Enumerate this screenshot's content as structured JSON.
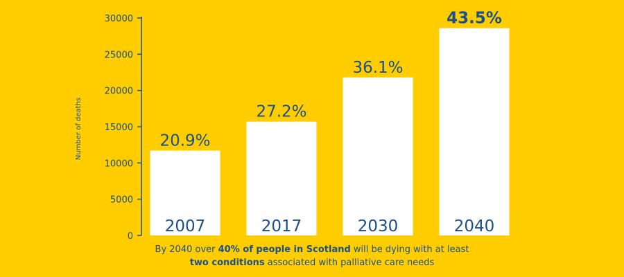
{
  "chart_data": {
    "type": "bar",
    "categories": [
      "2007",
      "2017",
      "2030",
      "2040"
    ],
    "values": [
      11700,
      15700,
      21800,
      28600
    ],
    "data_labels": [
      "20.9%",
      "27.2%",
      "36.1%",
      "43.5%"
    ],
    "ylabel": "Number of deaths",
    "ylim": [
      0,
      30000
    ],
    "yticks": [
      0,
      5000,
      10000,
      15000,
      20000,
      25000,
      30000
    ],
    "grid": false,
    "legend": "none"
  },
  "caption": {
    "line1_pre": "By 2040 over ",
    "line1_bold": "40% of people in Scotland",
    "line1_post": " will be dying with at least",
    "line2_bold": "two conditions",
    "line2_post": " associated with palliative care needs"
  },
  "colors": {
    "background": "#FFCD00",
    "bar": "#FFFFFF",
    "text": "#1B4F8A"
  }
}
